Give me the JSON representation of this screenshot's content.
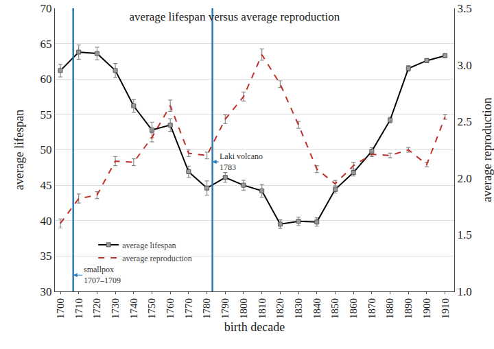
{
  "chart_data": {
    "type": "line",
    "title": "average lifespan versus average reproduction",
    "x_label": "birth decade",
    "y_label": "average lifespan",
    "y2_label": "average reproduction",
    "x": [
      1700,
      1710,
      1720,
      1730,
      1740,
      1750,
      1760,
      1770,
      1780,
      1790,
      1800,
      1810,
      1820,
      1830,
      1840,
      1850,
      1860,
      1870,
      1880,
      1890,
      1900,
      1910
    ],
    "series": [
      {
        "name": "average lifespan",
        "color": "#000000",
        "marker": "square",
        "line_style": "solid",
        "values": [
          61.2,
          63.8,
          63.6,
          61.2,
          56.2,
          52.8,
          53.5,
          46.9,
          44.6,
          46.1,
          45.0,
          44.2,
          39.5,
          39.9,
          39.8,
          44.4,
          46.8,
          49.8,
          54.2,
          61.5,
          62.6,
          63.3
        ],
        "errors": [
          0.9,
          1.0,
          0.9,
          1.0,
          0.9,
          1.1,
          0.9,
          0.8,
          1.0,
          0.7,
          0.7,
          0.9,
          0.6,
          0.6,
          0.6,
          0.5,
          0.5,
          0.5,
          0.4,
          0.4,
          0.3,
          0.3
        ]
      },
      {
        "name": "average reproduction",
        "color": "#c0302a",
        "line_style": "dashed",
        "axis": "y2",
        "values": [
          1.6,
          1.82,
          1.85,
          2.15,
          2.14,
          2.36,
          2.64,
          2.22,
          2.2,
          2.52,
          2.72,
          3.09,
          2.83,
          2.47,
          2.08,
          1.95,
          2.11,
          2.21,
          2.2,
          2.25,
          2.12,
          2.54
        ],
        "errors": [
          0.04,
          0.04,
          0.03,
          0.04,
          0.03,
          0.04,
          0.05,
          0.03,
          0.03,
          0.04,
          0.04,
          0.05,
          0.03,
          0.03,
          0.03,
          0.03,
          0.03,
          0.02,
          0.02,
          0.02,
          0.02,
          0.02
        ]
      }
    ],
    "xlim": [
      1697,
      1915
    ],
    "xticks": [
      1700,
      1710,
      1720,
      1730,
      1740,
      1750,
      1760,
      1770,
      1780,
      1790,
      1800,
      1810,
      1820,
      1830,
      1840,
      1850,
      1860,
      1870,
      1880,
      1890,
      1900,
      1910
    ],
    "ylim": [
      30,
      70
    ],
    "yticks": [
      30,
      35,
      40,
      45,
      50,
      55,
      60,
      65,
      70
    ],
    "y2lim": [
      1.0,
      3.5
    ],
    "y2ticks": [
      {
        "value": 1.0,
        "label": "1.0"
      },
      {
        "value": 1.5,
        "label": "1.5"
      },
      {
        "value": 2.0,
        "label": "2.0"
      },
      {
        "value": 2.5,
        "label": "2.5"
      },
      {
        "value": 3.0,
        "label": "3.0"
      },
      {
        "value": 3.5,
        "label": "3.5"
      }
    ],
    "grid": true,
    "legend": "lower left",
    "annotations": [
      {
        "text": [
          "smallpox",
          "1707–1709"
        ],
        "x": 1707,
        "y": 32.3
      },
      {
        "text": [
          "Laki volcano",
          "1783"
        ],
        "x": 1783,
        "y": 48.3
      }
    ]
  }
}
